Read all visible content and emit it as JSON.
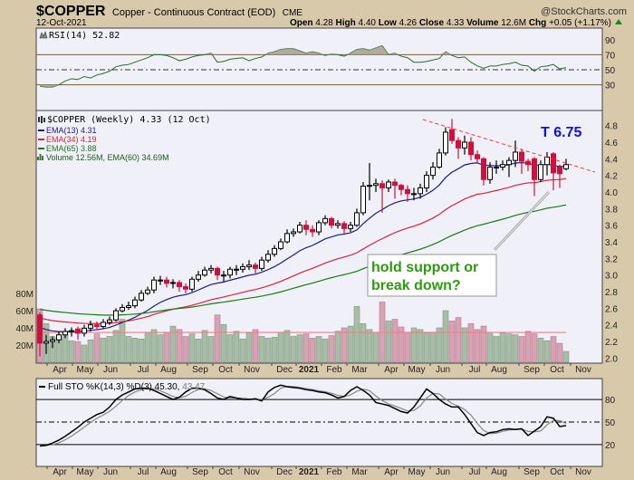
{
  "header": {
    "symbol": "$COPPER",
    "name": "Copper - Continuous Contract (EOD)",
    "exchange": "CME",
    "brand": "@StockCharts.com",
    "date": "12-Oct-2021",
    "open_label": "Open",
    "open": "4.28",
    "high_label": "High",
    "high": "4.40",
    "low_label": "Low",
    "low": "4.26",
    "close_label": "Close",
    "close": "4.33",
    "volume_label": "Volume",
    "volume": "12.6M",
    "chg_label": "Chg",
    "chg": "+0.05 (+1.17%)"
  },
  "colors": {
    "up_candle": "#ffffff",
    "down_candle": "#d0103a",
    "ema13": "#1a1a8c",
    "ema34": "#d8203c",
    "ema65": "#1a7a1a",
    "trendline": "#ff3030",
    "annotation": "#2e9a10",
    "target": "#1010e0"
  },
  "legends": {
    "rsi": "RSI(14) 52.82",
    "price": "$COPPER (Weekly) 4.33 (12 Oct)",
    "ema13": "EMA(13) 4.31",
    "ema34": "EMA(34) 4.19",
    "ema65": "EMA(65) 3.88",
    "volume": "Volume 12.56M, EMA(60) 34.69M",
    "sto_main": "Full STO %K(14,3) %D(3) 45.30,",
    "sto_d": "43.47"
  },
  "annotations": {
    "target": "T 6.75",
    "callout_line1": "hold support or",
    "callout_line2": "break down?"
  },
  "axes": {
    "rsi_ticks": [
      "90",
      "70",
      "50",
      "30"
    ],
    "price_ticks": [
      "4.8",
      "4.6",
      "4.4",
      "4.2",
      "4.0",
      "3.8",
      "3.6",
      "3.4",
      "3.2",
      "3.0",
      "2.8",
      "2.6",
      "2.4",
      "2.2",
      "2.0"
    ],
    "volume_ticks": [
      "80M",
      "60M",
      "40M",
      "20M"
    ],
    "sto_ticks": [
      "80",
      "50",
      "20"
    ],
    "months": [
      "Apr",
      "May",
      "Jun",
      "Jul",
      "Aug",
      "Sep",
      "Oct",
      "Nov",
      "Dec",
      "2021",
      "Feb",
      "Mar",
      "Apr",
      "May",
      "Jun",
      "Jul",
      "Aug",
      "Sep",
      "Oct",
      "Nov"
    ]
  },
  "chart_data": {
    "type": "candlestick",
    "title": "$COPPER Copper - Continuous Contract (EOD) CME - Weekly",
    "period": "weekly, Mar 2020 - Oct 2021",
    "price_range": [
      2.0,
      4.9
    ],
    "open": [
      2.52,
      2.18,
      2.2,
      2.22,
      2.28,
      2.32,
      2.35,
      2.3,
      2.36,
      2.4,
      2.38,
      2.43,
      2.46,
      2.57,
      2.61,
      2.63,
      2.7,
      2.78,
      2.82,
      2.94,
      2.94,
      2.9,
      2.91,
      2.86,
      2.83,
      2.95,
      3.0,
      3.06,
      3.08,
      3.0,
      3.0,
      3.07,
      3.07,
      3.1,
      3.12,
      3.08,
      3.18,
      3.25,
      3.32,
      3.4,
      3.5,
      3.52,
      3.6,
      3.55,
      3.52,
      3.63,
      3.68,
      3.6,
      3.62,
      3.56,
      3.6,
      3.75,
      4.07,
      4.08,
      4.1,
      4.05,
      4.12,
      4.08,
      4.03,
      3.98,
      3.98,
      4.05,
      4.2,
      4.3,
      4.47,
      4.75,
      4.62,
      4.53,
      4.6,
      4.45,
      4.4,
      4.15,
      4.3,
      4.3,
      4.33,
      4.38,
      4.48,
      4.37,
      4.4,
      4.15,
      4.33,
      4.46,
      4.3,
      4.28
    ],
    "high": [
      2.55,
      2.28,
      2.26,
      2.32,
      2.36,
      2.37,
      2.38,
      2.4,
      2.45,
      2.44,
      2.47,
      2.5,
      2.6,
      2.65,
      2.68,
      2.74,
      2.82,
      2.86,
      2.98,
      2.99,
      2.98,
      2.95,
      2.94,
      2.9,
      2.98,
      3.05,
      3.1,
      3.12,
      3.1,
      3.05,
      3.1,
      3.12,
      3.14,
      3.18,
      3.15,
      3.22,
      3.3,
      3.36,
      3.44,
      3.55,
      3.56,
      3.64,
      3.66,
      3.6,
      3.66,
      3.72,
      3.7,
      3.66,
      3.65,
      3.64,
      3.8,
      4.12,
      4.35,
      4.16,
      4.14,
      4.15,
      4.16,
      4.1,
      4.08,
      4.05,
      4.1,
      4.25,
      4.36,
      4.52,
      4.78,
      4.88,
      4.66,
      4.68,
      4.66,
      4.5,
      4.42,
      4.36,
      4.38,
      4.38,
      4.42,
      4.62,
      4.52,
      4.4,
      4.42,
      4.38,
      4.48,
      4.48,
      4.33,
      4.4
    ],
    "low": [
      2.02,
      2.05,
      2.12,
      2.18,
      2.24,
      2.26,
      2.22,
      2.26,
      2.32,
      2.34,
      2.35,
      2.4,
      2.44,
      2.55,
      2.58,
      2.6,
      2.68,
      2.76,
      2.78,
      2.88,
      2.85,
      2.84,
      2.8,
      2.78,
      2.8,
      2.92,
      2.98,
      3.02,
      2.94,
      2.92,
      2.96,
      3.0,
      3.03,
      3.06,
      3.02,
      3.05,
      3.15,
      3.22,
      3.3,
      3.38,
      3.46,
      3.5,
      3.48,
      3.46,
      3.48,
      3.6,
      3.56,
      3.56,
      3.5,
      3.52,
      3.58,
      3.72,
      3.9,
      4.0,
      3.75,
      4.0,
      3.92,
      3.96,
      3.88,
      3.9,
      3.92,
      4.0,
      4.15,
      4.28,
      4.44,
      4.58,
      4.4,
      4.45,
      4.38,
      4.35,
      4.08,
      4.1,
      4.22,
      4.26,
      4.18,
      4.3,
      4.22,
      4.25,
      3.95,
      4.12,
      4.2,
      4.02,
      4.05,
      4.26
    ],
    "close": [
      2.18,
      2.2,
      2.22,
      2.28,
      2.32,
      2.33,
      2.3,
      2.36,
      2.4,
      2.38,
      2.43,
      2.46,
      2.57,
      2.61,
      2.63,
      2.7,
      2.78,
      2.82,
      2.94,
      2.94,
      2.9,
      2.91,
      2.86,
      2.83,
      2.95,
      3.0,
      3.06,
      3.08,
      3.0,
      3.0,
      3.07,
      3.07,
      3.1,
      3.12,
      3.08,
      3.18,
      3.25,
      3.32,
      3.4,
      3.5,
      3.52,
      3.6,
      3.55,
      3.52,
      3.63,
      3.68,
      3.6,
      3.62,
      3.56,
      3.6,
      3.75,
      4.07,
      4.08,
      4.1,
      4.05,
      4.12,
      4.08,
      4.03,
      3.98,
      3.98,
      4.05,
      4.2,
      4.3,
      4.47,
      4.72,
      4.62,
      4.53,
      4.6,
      4.45,
      4.4,
      4.15,
      4.3,
      4.3,
      4.33,
      4.38,
      4.48,
      4.37,
      4.33,
      4.15,
      4.33,
      4.42,
      4.23,
      4.22,
      4.33
    ],
    "ema_seeds": {
      "ema13": 2.4,
      "ema34": 2.5,
      "ema65": 2.6
    },
    "volume_millions": [
      62,
      45,
      30,
      28,
      32,
      25,
      24,
      20,
      26,
      33,
      28,
      30,
      37,
      50,
      30,
      28,
      27,
      35,
      38,
      32,
      35,
      42,
      38,
      30,
      33,
      27,
      37,
      30,
      55,
      44,
      32,
      36,
      27,
      34,
      38,
      30,
      28,
      29,
      35,
      37,
      30,
      32,
      33,
      28,
      30,
      27,
      31,
      36,
      40,
      42,
      65,
      45,
      38,
      35,
      70,
      48,
      50,
      41,
      35,
      40,
      38,
      34,
      35,
      40,
      60,
      48,
      52,
      40,
      45,
      38,
      42,
      35,
      30,
      34,
      33,
      32,
      30,
      36,
      33,
      28,
      25,
      30,
      22,
      12.56
    ],
    "volume_ema60_millions": 34.69,
    "volume_range": [
      0,
      90
    ],
    "rsi14": [
      28,
      27,
      27,
      30,
      35,
      38,
      37,
      41,
      39,
      43,
      45,
      48,
      54,
      56,
      57,
      60,
      63,
      66,
      70,
      70,
      69,
      66,
      62,
      64,
      67,
      69,
      70,
      72,
      60,
      61,
      64,
      65,
      66,
      62,
      65,
      67,
      72,
      74,
      77,
      78,
      78,
      75,
      72,
      74,
      72,
      69,
      71,
      70,
      68,
      72,
      77,
      78,
      76,
      79,
      82,
      70,
      72,
      68,
      66,
      60,
      60,
      61,
      63,
      65,
      74,
      69,
      66,
      67,
      60,
      55,
      52,
      55,
      55,
      57,
      58,
      60,
      56,
      55,
      48,
      54,
      55,
      57,
      51,
      52.82
    ],
    "rsi_levels": [
      70,
      50,
      30
    ],
    "sto_k": [
      18,
      19,
      22,
      26,
      31,
      37,
      43,
      50,
      55,
      60,
      63,
      70,
      80,
      86,
      90,
      94,
      95,
      95,
      92,
      88,
      84,
      80,
      83,
      90,
      95,
      95,
      93,
      88,
      82,
      80,
      84,
      82,
      80,
      80,
      81,
      78,
      90,
      96,
      99,
      97,
      96,
      95,
      93,
      92,
      90,
      89,
      86,
      82,
      84,
      92,
      97,
      92,
      86,
      76,
      74,
      72,
      68,
      64,
      62,
      70,
      82,
      94,
      88,
      80,
      74,
      70,
      70,
      60,
      48,
      36,
      32,
      36,
      37,
      40,
      41,
      40,
      41,
      32,
      38,
      44,
      57,
      55,
      44,
      45.3
    ],
    "sto_levels": [
      80,
      50,
      20
    ],
    "trendline": {
      "from_price": 4.88,
      "to_price": 4.24,
      "style": "dashed"
    },
    "target_price": 6.75
  }
}
